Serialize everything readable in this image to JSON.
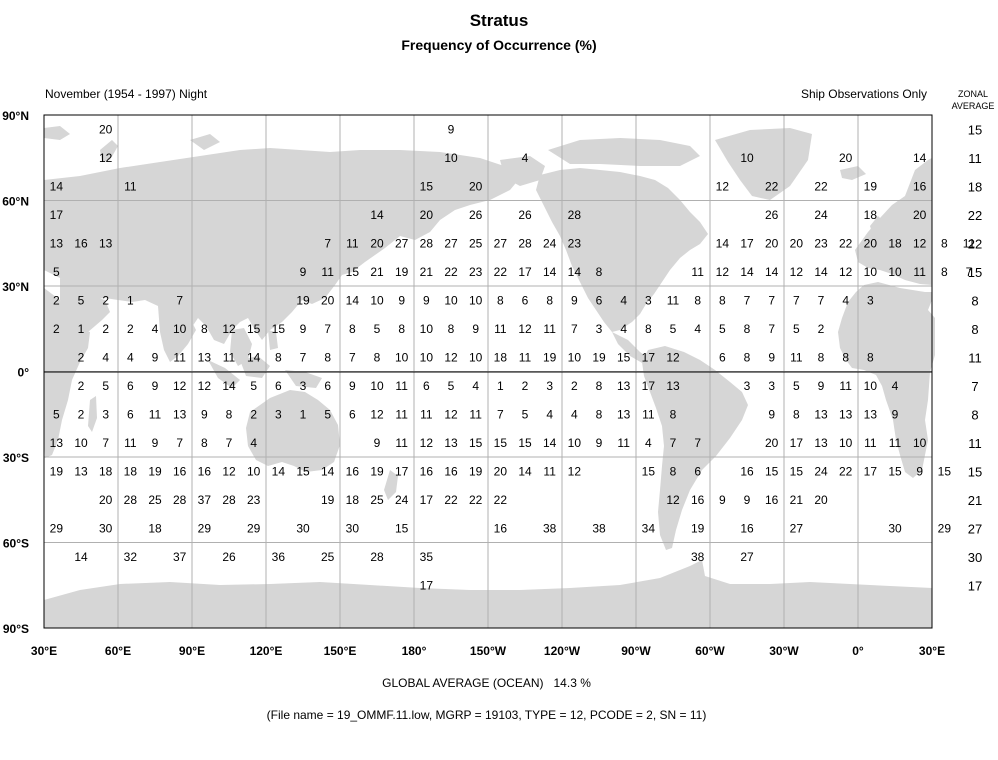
{
  "title": "Stratus",
  "subtitle": "Frequency of Occurrence (%)",
  "period_label": "November (1954 - 1997) Night",
  "source_label": "Ship Observations Only",
  "zonal_header": "ZONAL AVERAGE",
  "lat_labels": [
    "90°N",
    "60°N",
    "30°N",
    "0°",
    "30°S",
    "60°S",
    "90°S"
  ],
  "lon_labels": [
    "30°E",
    "60°E",
    "90°E",
    "120°E",
    "150°E",
    "180°",
    "150°W",
    "120°W",
    "90°W",
    "60°W",
    "30°W",
    "0°",
    "30°E"
  ],
  "zonal_averages": [
    15,
    11,
    18,
    22,
    22,
    15,
    8,
    8,
    11,
    7,
    8,
    11,
    15,
    21,
    27,
    30,
    17
  ],
  "grid_values": [
    [
      null,
      null,
      20,
      null,
      null,
      null,
      null,
      null,
      null,
      null,
      null,
      null,
      null,
      null,
      null,
      null,
      9,
      null,
      null,
      null,
      null,
      null,
      null,
      null,
      null,
      null,
      null,
      null,
      null,
      null,
      null,
      null,
      null,
      null,
      null,
      null
    ],
    [
      null,
      null,
      12,
      null,
      null,
      null,
      null,
      null,
      null,
      null,
      null,
      null,
      null,
      null,
      null,
      null,
      10,
      null,
      null,
      4,
      null,
      null,
      null,
      null,
      null,
      null,
      null,
      null,
      10,
      null,
      null,
      null,
      20,
      null,
      null,
      14
    ],
    [
      14,
      null,
      null,
      11,
      null,
      null,
      null,
      null,
      null,
      null,
      null,
      null,
      null,
      null,
      null,
      15,
      null,
      20,
      null,
      null,
      null,
      null,
      null,
      null,
      null,
      null,
      null,
      12,
      null,
      22,
      null,
      22,
      null,
      19,
      null,
      16
    ],
    [
      17,
      null,
      null,
      null,
      null,
      null,
      null,
      null,
      null,
      null,
      null,
      null,
      null,
      14,
      null,
      20,
      null,
      26,
      null,
      26,
      null,
      28,
      null,
      null,
      null,
      null,
      null,
      null,
      null,
      26,
      null,
      24,
      null,
      18,
      null,
      20
    ],
    [
      13,
      16,
      13,
      null,
      null,
      null,
      null,
      null,
      null,
      null,
      null,
      7,
      11,
      20,
      27,
      28,
      27,
      25,
      27,
      28,
      24,
      23,
      null,
      null,
      null,
      null,
      null,
      14,
      17,
      20,
      20,
      23,
      22,
      20,
      18,
      12,
      8,
      11
    ],
    [
      5,
      null,
      null,
      null,
      null,
      null,
      null,
      null,
      null,
      null,
      9,
      11,
      15,
      21,
      19,
      21,
      22,
      23,
      22,
      17,
      14,
      14,
      8,
      null,
      null,
      null,
      11,
      12,
      14,
      14,
      12,
      14,
      12,
      10,
      10,
      11,
      8,
      7
    ],
    [
      2,
      5,
      2,
      1,
      null,
      7,
      null,
      null,
      null,
      null,
      19,
      20,
      14,
      10,
      9,
      9,
      10,
      10,
      8,
      6,
      8,
      9,
      6,
      4,
      3,
      11,
      8,
      8,
      7,
      7,
      7,
      7,
      4,
      3
    ],
    [
      2,
      1,
      2,
      2,
      4,
      10,
      8,
      12,
      15,
      15,
      9,
      7,
      8,
      5,
      8,
      10,
      8,
      9,
      11,
      12,
      11,
      7,
      3,
      4,
      8,
      5,
      4,
      5,
      8,
      7,
      5,
      2
    ],
    [
      null,
      2,
      4,
      4,
      9,
      11,
      13,
      11,
      14,
      8,
      7,
      8,
      7,
      8,
      10,
      10,
      12,
      10,
      18,
      11,
      19,
      10,
      19,
      15,
      17,
      12,
      null,
      6,
      8,
      9,
      11,
      8,
      8,
      8
    ],
    [
      null,
      2,
      5,
      6,
      9,
      12,
      12,
      14,
      5,
      6,
      3,
      6,
      9,
      10,
      11,
      6,
      5,
      4,
      1,
      2,
      3,
      2,
      8,
      13,
      17,
      13,
      null,
      null,
      3,
      3,
      5,
      9,
      11,
      10,
      4
    ],
    [
      5,
      2,
      3,
      6,
      11,
      13,
      9,
      8,
      2,
      3,
      1,
      5,
      6,
      12,
      11,
      11,
      12,
      11,
      7,
      5,
      4,
      4,
      8,
      13,
      11,
      8,
      null,
      null,
      null,
      9,
      8,
      13,
      13,
      13,
      9
    ],
    [
      13,
      10,
      7,
      11,
      9,
      7,
      8,
      7,
      4,
      null,
      null,
      null,
      null,
      9,
      11,
      12,
      13,
      15,
      15,
      15,
      14,
      10,
      9,
      11,
      4,
      7,
      7,
      null,
      null,
      20,
      17,
      13,
      10,
      11,
      11,
      10
    ],
    [
      19,
      13,
      18,
      18,
      19,
      16,
      16,
      12,
      10,
      14,
      15,
      14,
      16,
      19,
      17,
      16,
      16,
      19,
      20,
      14,
      11,
      12,
      null,
      null,
      15,
      8,
      6,
      null,
      16,
      15,
      15,
      24,
      22,
      17,
      15,
      9,
      15
    ],
    [
      null,
      null,
      20,
      28,
      25,
      28,
      37,
      28,
      23,
      null,
      null,
      19,
      18,
      25,
      24,
      17,
      22,
      22,
      22,
      null,
      null,
      null,
      null,
      null,
      null,
      12,
      16,
      9,
      9,
      16,
      21,
      20
    ],
    [
      29,
      null,
      30,
      null,
      18,
      null,
      29,
      null,
      29,
      null,
      30,
      null,
      30,
      null,
      15,
      null,
      null,
      null,
      16,
      null,
      38,
      null,
      38,
      null,
      34,
      null,
      19,
      null,
      16,
      null,
      27,
      null,
      null,
      null,
      30,
      null,
      29
    ],
    [
      null,
      14,
      null,
      32,
      null,
      37,
      null,
      26,
      null,
      36,
      null,
      25,
      null,
      28,
      null,
      35,
      null,
      null,
      null,
      null,
      null,
      null,
      null,
      null,
      null,
      null,
      38,
      null,
      27
    ],
    [
      null,
      null,
      null,
      null,
      null,
      null,
      null,
      null,
      null,
      null,
      null,
      null,
      null,
      null,
      null,
      17
    ]
  ]
}
